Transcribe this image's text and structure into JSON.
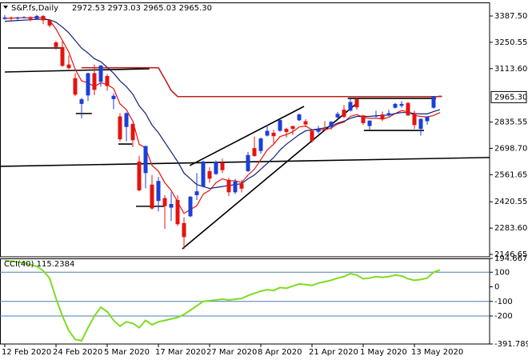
{
  "chart_data": [
    {
      "type": "candlestick",
      "title": "S&P.fs,Daily",
      "ohlc_text": "2972.53 2973.03 2965.03 2965.30",
      "categories": [
        "12 Feb 2020",
        null,
        null,
        null,
        null,
        null,
        null,
        null,
        "24 Feb 2020",
        null,
        null,
        null,
        null,
        null,
        null,
        null,
        "5 Mar 2020",
        null,
        null,
        null,
        null,
        null,
        null,
        null,
        "17 Mar 2020",
        null,
        null,
        null,
        null,
        null,
        null,
        null,
        "27 Mar 2020",
        null,
        null,
        null,
        null,
        null,
        null,
        null,
        "8 Apr 2020",
        null,
        null,
        null,
        null,
        null,
        null,
        null,
        "21 Apr 2020",
        null,
        null,
        null,
        null,
        null,
        null,
        null,
        "1 May 2020",
        null,
        null,
        null,
        null,
        null,
        null,
        null,
        "13 May 2020",
        null,
        null,
        null,
        null
      ],
      "open": [
        3372,
        3380,
        3374,
        3380,
        3382,
        3372,
        3388,
        3365,
        3250,
        3226,
        3135,
        3064,
        2930,
        2974,
        3090,
        3045,
        3075,
        2955,
        2865,
        2810,
        2826,
        2630,
        2570,
        2510,
        2425,
        2440,
        2390,
        2430,
        2310,
        2345,
        2455,
        2500,
        2580,
        2565,
        2625,
        2535,
        2470,
        2515,
        2580,
        2700,
        2685,
        2765,
        2780,
        2790,
        2800,
        2815,
        2845,
        2840,
        2790,
        2785,
        2800,
        2810,
        2860,
        2900,
        2895,
        2955,
        2870,
        2815,
        2865,
        2875,
        2870,
        2910,
        2920,
        2935,
        2880,
        2800,
        2840,
        2910,
        2972.53
      ],
      "high": [
        3392,
        3385,
        3384,
        3386,
        3386,
        3394,
        3392,
        3368,
        3258,
        3258,
        3182,
        3090,
        2962,
        3092,
        3135,
        3132,
        3085,
        2985,
        2882,
        2885,
        2828,
        2660,
        2712,
        2560,
        2550,
        2455,
        2470,
        2455,
        2340,
        2450,
        2570,
        2635,
        2600,
        2635,
        2645,
        2545,
        2540,
        2535,
        2680,
        2760,
        2755,
        2820,
        2795,
        2850,
        2806,
        2815,
        2880,
        2850,
        2792,
        2815,
        2840,
        2840,
        2888,
        2925,
        2955,
        2960,
        2872,
        2845,
        2895,
        2890,
        2900,
        2935,
        2945,
        2940,
        2895,
        2855,
        2866,
        2970,
        2973.03
      ],
      "low": [
        3368,
        3362,
        3366,
        3374,
        3360,
        3370,
        3345,
        3328,
        3212,
        3122,
        3110,
        2970,
        2855,
        2945,
        2976,
        3020,
        2998,
        2902,
        2735,
        2735,
        2705,
        2475,
        2490,
        2380,
        2370,
        2280,
        2320,
        2295,
        2175,
        2340,
        2430,
        2495,
        2520,
        2560,
        2570,
        2450,
        2460,
        2470,
        2575,
        2655,
        2670,
        2760,
        2725,
        2785,
        2755,
        2768,
        2840,
        2810,
        2728,
        2775,
        2790,
        2795,
        2850,
        2855,
        2890,
        2900,
        2820,
        2795,
        2860,
        2840,
        2865,
        2905,
        2910,
        2868,
        2800,
        2765,
        2822,
        2905,
        2965.03
      ],
      "close": [
        3380,
        3374,
        3380,
        3382,
        3372,
        3388,
        3365,
        3338,
        3226,
        3128,
        3116,
        2978,
        2954,
        3090,
        3003,
        3130,
        3023,
        2972,
        2746,
        2882,
        2741,
        2480,
        2711,
        2386,
        2529,
        2398,
        2409,
        2304,
        2237,
        2447,
        2475,
        2630,
        2541,
        2627,
        2585,
        2470,
        2526,
        2489,
        2664,
        2659,
        2750,
        2790,
        2762,
        2846,
        2784,
        2800,
        2875,
        2823,
        2737,
        2799,
        2798,
        2837,
        2878,
        2863,
        2940,
        2912,
        2830,
        2843,
        2868,
        2849,
        2882,
        2930,
        2930,
        2870,
        2820,
        2852,
        2864,
        2970,
        2965.3
      ],
      "colors": {
        "up": "#1c3fd6",
        "down": "#e3140f"
      },
      "series": [
        {
          "color": "#e3140f",
          "values": [
            3375,
            3376,
            3378,
            3379,
            3378,
            3381,
            3377,
            3365,
            3320,
            3260,
            3200,
            3110,
            3050,
            3040,
            3020,
            3040,
            3030,
            3010,
            2930,
            2900,
            2840,
            2720,
            2700,
            2610,
            2580,
            2520,
            2480,
            2420,
            2360,
            2380,
            2400,
            2460,
            2480,
            2520,
            2540,
            2530,
            2530,
            2520,
            2560,
            2590,
            2640,
            2690,
            2720,
            2760,
            2770,
            2785,
            2810,
            2815,
            2795,
            2795,
            2795,
            2805,
            2825,
            2835,
            2865,
            2875,
            2860,
            2855,
            2855,
            2852,
            2860,
            2880,
            2895,
            2890,
            2870,
            2865,
            2862,
            2870,
            2885
          ]
        },
        {
          "color": "#10207a",
          "values": [
            3360,
            3362,
            3364,
            3366,
            3368,
            3370,
            3370,
            3368,
            3355,
            3330,
            3300,
            3260,
            3220,
            3195,
            3165,
            3150,
            3120,
            3090,
            3050,
            3020,
            2980,
            2920,
            2880,
            2820,
            2780,
            2730,
            2680,
            2630,
            2570,
            2540,
            2510,
            2500,
            2490,
            2495,
            2500,
            2505,
            2510,
            2515,
            2540,
            2560,
            2590,
            2620,
            2650,
            2690,
            2720,
            2745,
            2770,
            2790,
            2795,
            2800,
            2805,
            2815,
            2830,
            2840,
            2855,
            2865,
            2865,
            2865,
            2868,
            2870,
            2872,
            2880,
            2885,
            2885,
            2880,
            2878,
            2878,
            2890,
            2900
          ]
        },
        {
          "color": "#b8241c",
          "values": [
            null,
            null,
            null,
            null,
            null,
            null,
            null,
            null,
            null,
            null,
            null,
            null,
            3118,
            3118,
            3118,
            3118,
            3118,
            3118,
            3118,
            3118,
            3118,
            3118,
            3118,
            3118,
            3118,
            3060,
            3000,
            2968,
            2968,
            2968,
            2968,
            2968,
            2968,
            2968,
            2968,
            2968,
            2968,
            2968,
            2968,
            2968,
            2968,
            2968,
            2968,
            2968,
            2968,
            2968,
            2968,
            2968,
            2968,
            2968,
            2968,
            2968,
            2968,
            2968,
            2968,
            2968,
            2968,
            2968,
            2968,
            2968,
            2968,
            2968,
            2968,
            2968,
            2968,
            2968,
            2968,
            2968,
            2968
          ]
        }
      ],
      "trendlines": [
        {
          "x": [
            0,
            22.6
          ],
          "y": [
            3096,
            3113
          ]
        },
        {
          "x": [
            0.5,
            9.25
          ],
          "y": [
            3221,
            3221
          ]
        },
        {
          "x": [
            11.1,
            13.6
          ],
          "y": [
            2880,
            2880
          ]
        },
        {
          "x": [
            17.75,
            19.9
          ],
          "y": [
            2721,
            2721
          ]
        },
        {
          "x": [
            20.5,
            24.9
          ],
          "y": [
            2397,
            2397
          ]
        },
        {
          "x": [
            -0.75,
            75.75
          ],
          "y": [
            2605,
            2651
          ]
        },
        {
          "x": [
            27.75,
            54.9
          ],
          "y": [
            2176,
            2930
          ]
        },
        {
          "x": [
            28.9,
            46.75
          ],
          "y": [
            2609,
            2917
          ]
        },
        {
          "x": [
            53.6,
            67.4
          ],
          "y": [
            2959,
            2959
          ]
        },
        {
          "x": [
            56.1,
            65.5
          ],
          "y": [
            2792,
            2792
          ]
        }
      ],
      "trendline_color": "#000000",
      "ylim": [
        2134.2,
        3458.3
      ],
      "yticks": [
        {
          "value": 3387.5,
          "label": "3387.50"
        },
        {
          "value": 3250.55,
          "label": "3250.55"
        },
        {
          "value": 3113.6,
          "label": "3113.60"
        },
        {
          "value": 2835.55,
          "label": "2835.55"
        },
        {
          "value": 2698.7,
          "label": "2698.70"
        },
        {
          "value": 2561.65,
          "label": "2561.65"
        },
        {
          "value": 2420.55,
          "label": "2420.55"
        },
        {
          "value": 2283.6,
          "label": "2283.60"
        },
        {
          "value": 2146.65,
          "label": "2146.65"
        }
      ],
      "last_price": {
        "value": 2965.3,
        "label": "2965.30"
      },
      "grid": false
    },
    {
      "type": "line",
      "title": "CCI(40) 115.2384",
      "color": "#7ddc1f",
      "values": [
        180,
        175,
        170,
        165,
        150,
        140,
        110,
        60,
        -80,
        -200,
        -300,
        -360,
        -370,
        -280,
        -200,
        -140,
        -170,
        -230,
        -270,
        -240,
        -250,
        -280,
        -230,
        -260,
        -240,
        -230,
        -220,
        -210,
        -190,
        -160,
        -130,
        -100,
        -95,
        -90,
        -85,
        -90,
        -85,
        -80,
        -60,
        -45,
        -30,
        -20,
        -25,
        -5,
        -10,
        5,
        20,
        15,
        10,
        25,
        35,
        45,
        60,
        70,
        90,
        80,
        55,
        60,
        70,
        65,
        70,
        80,
        75,
        55,
        45,
        50,
        60,
        100,
        115.2384
      ],
      "ylim": [
        -391.789,
        194.667
      ],
      "yticks": [
        {
          "value": 194.667,
          "label": "194.667"
        },
        100,
        0,
        -100,
        -200,
        {
          "value": -391.789,
          "label": "-391.789"
        }
      ],
      "levels": [
        100,
        -100,
        -200
      ],
      "level_color": "#4a7fb0"
    }
  ]
}
